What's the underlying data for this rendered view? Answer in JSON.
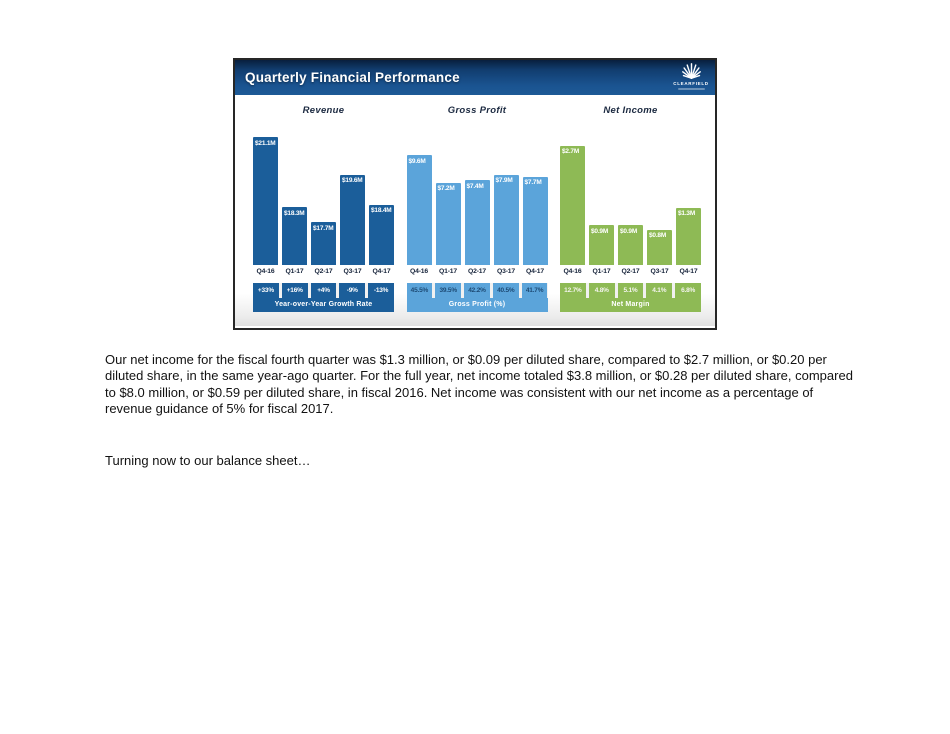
{
  "slide": {
    "title": "Quarterly Financial Performance",
    "logo_text": "CLEARFIELD"
  },
  "chart_data": [
    {
      "type": "bar",
      "title": "Revenue",
      "unit": "USD millions",
      "categories": [
        "Q4-16",
        "Q1-17",
        "Q2-17",
        "Q3-17",
        "Q4-17"
      ],
      "values": [
        21.1,
        18.3,
        17.7,
        19.6,
        18.4
      ],
      "bar_labels": [
        "$21.1M",
        "$18.3M",
        "$17.7M",
        "$19.6M",
        "$18.4M"
      ],
      "ylim": [
        16,
        21.1
      ],
      "bar_color": "#1b5e9a",
      "footer": {
        "label": "Year-over-Year Growth Rate",
        "values": [
          "+33%",
          "+16%",
          "+4%",
          "-9%",
          "-13%"
        ],
        "value_color": "#ffffff"
      }
    },
    {
      "type": "bar",
      "title": "Gross Profit",
      "unit": "USD millions",
      "categories": [
        "Q4-16",
        "Q1-17",
        "Q2-17",
        "Q3-17",
        "Q4-17"
      ],
      "values": [
        9.6,
        7.2,
        7.4,
        7.9,
        7.7
      ],
      "bar_labels": [
        "$9.6M",
        "$7.2M",
        "$7.4M",
        "$7.9M",
        "$7.7M"
      ],
      "ylim": [
        0,
        11.2
      ],
      "bar_color": "#5ba4da",
      "footer": {
        "label": "Gross Profit (%)",
        "values": [
          "45.5%",
          "39.5%",
          "42.2%",
          "40.5%",
          "41.7%"
        ],
        "value_color": "#1d4a74"
      }
    },
    {
      "type": "bar",
      "title": "Net Income",
      "unit": "USD millions",
      "categories": [
        "Q4-16",
        "Q1-17",
        "Q2-17",
        "Q3-17",
        "Q4-17"
      ],
      "values": [
        2.7,
        0.9,
        0.9,
        0.8,
        1.3
      ],
      "bar_labels": [
        "$2.7M",
        "$0.9M",
        "$0.9M",
        "$0.8M",
        "$1.3M"
      ],
      "ylim": [
        0,
        2.9
      ],
      "bar_color": "#8eba55",
      "footer": {
        "label": "Net Margin",
        "values": [
          "12.7%",
          "4.8%",
          "5.1%",
          "4.1%",
          "6.8%"
        ],
        "value_color": "#f5f5f0"
      }
    }
  ],
  "body_text": {
    "paragraph_1": "Our net income for the fiscal fourth quarter was $1.3 million, or $0.09 per diluted share, compared to $2.7 million, or $0.20 per diluted share, in the same year-ago quarter. For the full year, net income totaled $3.8 million, or $0.28 per diluted share, compared to $8.0 million, or $0.59 per diluted share, in fiscal 2016. Net income was consistent with our net income as a percentage of revenue guidance of 5% for fiscal 2017.",
    "paragraph_2": "Turning now to our balance sheet…"
  }
}
